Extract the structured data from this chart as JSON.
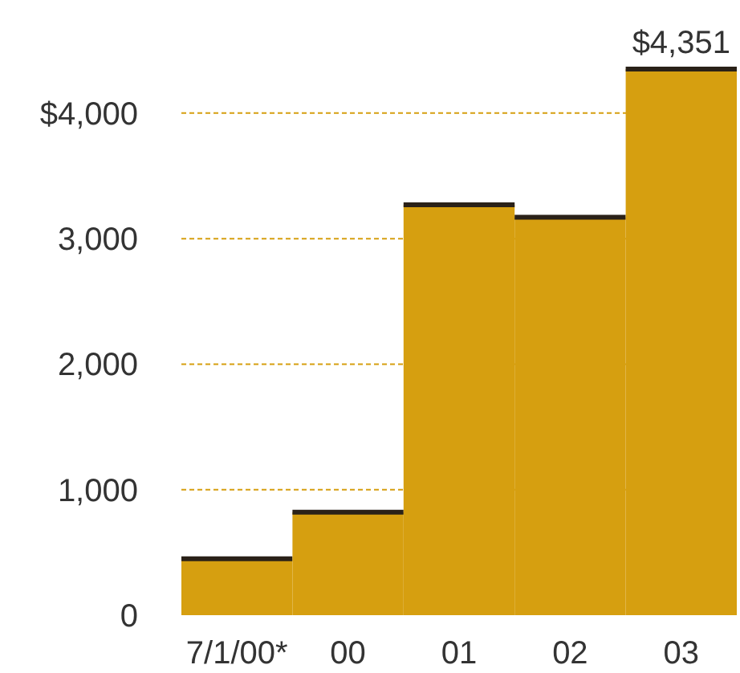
{
  "chart_data": {
    "type": "bar",
    "categories": [
      "7/1/00*",
      "00",
      "01",
      "02",
      "03"
    ],
    "values": [
      450,
      820,
      3270,
      3170,
      4351
    ],
    "color": "#d69f10",
    "value_labels": [
      null,
      null,
      null,
      null,
      "$4,351"
    ],
    "ylim": [
      0,
      4351
    ],
    "yticks": [
      0,
      {
        "value": 1000,
        "label": "1,000"
      },
      {
        "value": 2000,
        "label": "2,000"
      },
      {
        "value": 3000,
        "label": "3,000"
      },
      {
        "value": 4000,
        "label": "$4,000"
      }
    ],
    "grid": "y"
  }
}
